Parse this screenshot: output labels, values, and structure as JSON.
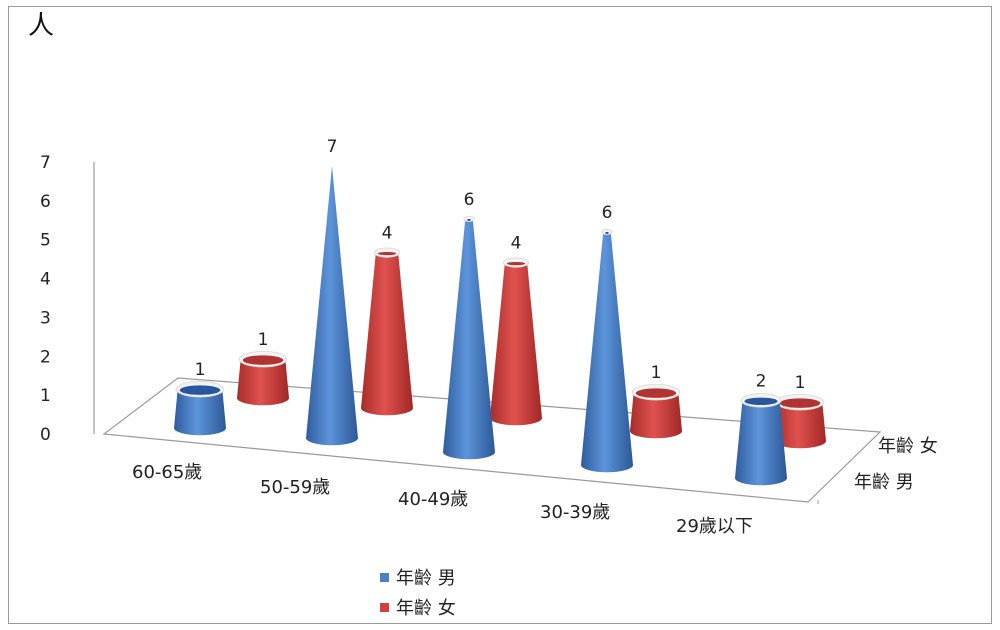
{
  "chart_data": {
    "type": "bar",
    "style": "3d-cone",
    "ylabel": "人",
    "ylim": [
      0,
      7
    ],
    "yticks": [
      0,
      1,
      2,
      3,
      4,
      5,
      6,
      7
    ],
    "categories": [
      "60-65歲",
      "50-59歲",
      "40-49歲",
      "30-39歲",
      "29歲以下"
    ],
    "series": [
      {
        "name": "年齡 男",
        "color": "#4a7fc9",
        "values": [
          1,
          7,
          6,
          6,
          2
        ]
      },
      {
        "name": "年齡 女",
        "color": "#d0413f",
        "values": [
          1,
          4,
          4,
          1,
          1
        ]
      }
    ],
    "depth_labels": [
      "年齡 女",
      "年齡 男"
    ],
    "legend_position": "bottom-left",
    "data_labels": true
  }
}
